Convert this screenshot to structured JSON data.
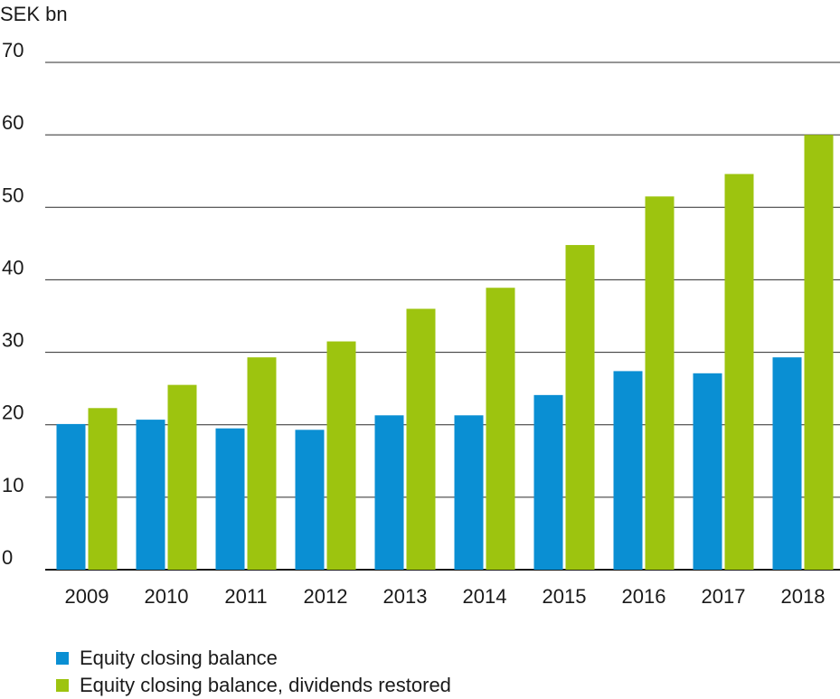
{
  "chart_data": {
    "type": "bar",
    "ylabel": "SEK bn",
    "ylim": [
      0,
      70
    ],
    "yticks": [
      0,
      10,
      20,
      30,
      40,
      50,
      60,
      70
    ],
    "categories": [
      "2009",
      "2010",
      "2011",
      "2012",
      "2013",
      "2014",
      "2015",
      "2016",
      "2017",
      "2018"
    ],
    "series": [
      {
        "name": "Equity closing balance",
        "color": "#0a8fd3",
        "values": [
          20.1,
          20.7,
          19.5,
          19.3,
          21.3,
          21.3,
          24.1,
          27.4,
          27.1,
          29.3
        ]
      },
      {
        "name": "Equity closing balance, dividends restored",
        "color": "#9dc40f",
        "values": [
          22.3,
          25.5,
          29.3,
          31.5,
          36.0,
          38.9,
          44.8,
          51.5,
          54.6,
          60.0
        ]
      }
    ],
    "grid": true,
    "legend_position": "bottom-left"
  }
}
